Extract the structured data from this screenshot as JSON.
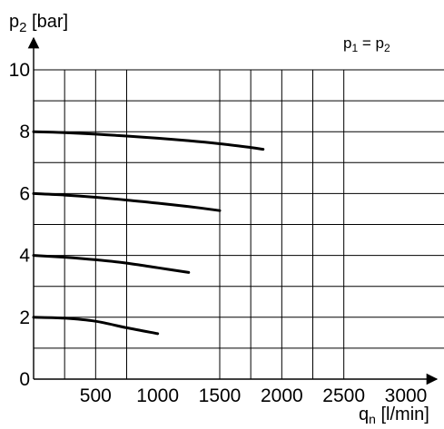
{
  "chart_data": {
    "type": "line",
    "title": "",
    "annotation": {
      "main": "p",
      "sub1": "1",
      "eq": " = p",
      "sub2": "2"
    },
    "ylabel": {
      "main": "p",
      "sub": "2",
      "unit": " [bar]"
    },
    "xlabel": {
      "main": "q",
      "sub": "n",
      "unit": " [l/min]"
    },
    "xlim": [
      0,
      3000
    ],
    "ylim": [
      0,
      10
    ],
    "x_gridlines": [
      250,
      500,
      750,
      1500,
      1750,
      2000,
      2250,
      2500
    ],
    "y_gridlines": [
      1,
      2,
      3,
      4,
      5,
      6,
      7,
      8,
      9,
      10
    ],
    "x_ticks": [
      {
        "value": 500,
        "label": "500"
      },
      {
        "value": 1000,
        "label": "1000"
      },
      {
        "value": 1500,
        "label": "1500"
      },
      {
        "value": 2000,
        "label": "2000"
      },
      {
        "value": 2500,
        "label": "2500"
      },
      {
        "value": 3000,
        "label": "3000"
      }
    ],
    "y_ticks": [
      {
        "value": 0,
        "label": "0"
      },
      {
        "value": 2,
        "label": "2"
      },
      {
        "value": 4,
        "label": "4"
      },
      {
        "value": 6,
        "label": "6"
      },
      {
        "value": 8,
        "label": "8"
      },
      {
        "value": 10,
        "label": "10"
      }
    ],
    "grid": true,
    "legend": "none",
    "series": [
      {
        "x": [
          0,
          250,
          500,
          750,
          1000,
          1250,
          1500,
          1750,
          1850
        ],
        "y": [
          8.0,
          7.97,
          7.92,
          7.86,
          7.79,
          7.71,
          7.61,
          7.49,
          7.43
        ]
      },
      {
        "x": [
          0,
          250,
          500,
          750,
          1000,
          1250,
          1500
        ],
        "y": [
          6.0,
          5.95,
          5.88,
          5.79,
          5.69,
          5.58,
          5.45
        ]
      },
      {
        "x": [
          0,
          250,
          500,
          750,
          1000,
          1250
        ],
        "y": [
          4.0,
          3.94,
          3.86,
          3.75,
          3.6,
          3.45
        ]
      },
      {
        "x": [
          0,
          250,
          500,
          750,
          1000
        ],
        "y": [
          2.0,
          1.97,
          1.87,
          1.66,
          1.47
        ]
      }
    ]
  }
}
